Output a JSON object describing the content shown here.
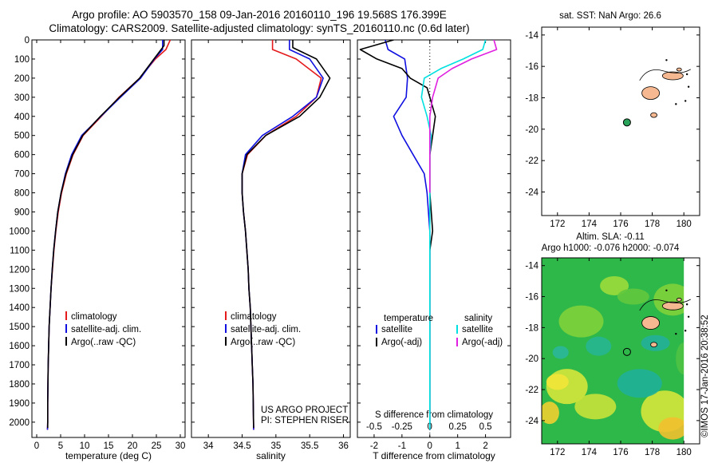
{
  "header": {
    "title_line1": "Argo profile: AO 5903570_158 09-Jan-2016 20160110_196 19.568S 176.399E",
    "title_line2": "Climatology: CARS2009. Satellite-adjusted climatology: synTS_20160110.nc (0.6d later)"
  },
  "credits": {
    "project": "US ARGO PROJECT",
    "pi": "PI: STEPHEN RISER",
    "imos": "©IMOS 17-Jan-2016 20:38:52"
  },
  "colors": {
    "climatology": "#e41a1c",
    "satellite": "#1010e0",
    "argo": "#000000",
    "sat_salinity": "#00e0e0",
    "argo_salinity": "#e020e0"
  },
  "map_sst": {
    "title": "sat. SST: NaN Argo: 26.6",
    "xticks": [
      "172",
      "174",
      "176",
      "178",
      "180"
    ],
    "yticks": [
      "-14",
      "-16",
      "-18",
      "-20",
      "-22",
      "-24"
    ],
    "xlim": [
      171,
      181
    ],
    "ylim": [
      -25.5,
      -13.5
    ],
    "float_position": [
      176.399,
      -19.568
    ]
  },
  "map_sla": {
    "title_line1": "Altim. SLA: -0.11",
    "title_line2": "Argo h1000: -0.076 h2000: -0.074",
    "xticks": [
      "172",
      "174",
      "176",
      "178",
      "180"
    ],
    "yticks": [
      "-14",
      "-16",
      "-18",
      "-20",
      "-22",
      "-24"
    ],
    "xlim": [
      171,
      181
    ],
    "ylim": [
      -25.5,
      -13.5
    ],
    "float_position": [
      176.399,
      -19.568
    ]
  },
  "chart_data": [
    {
      "type": "line",
      "panel": "temperature",
      "xlabel": "temperature (deg C)",
      "ylabel": "",
      "xlim": [
        -1,
        31
      ],
      "ylim": [
        2080,
        0
      ],
      "xticks": [
        0,
        5,
        10,
        15,
        20,
        25,
        30
      ],
      "yticks": [
        0,
        100,
        200,
        300,
        400,
        500,
        600,
        700,
        800,
        900,
        1000,
        1100,
        1200,
        1300,
        1400,
        1500,
        1600,
        1700,
        1800,
        1900,
        2000
      ],
      "legend": [
        "climatology",
        "satellite-adj. clim.",
        "Argo(..raw -QC)"
      ],
      "series": [
        {
          "name": "climatology",
          "color": "#e41a1c",
          "x": [
            27.9,
            27.0,
            24.8,
            21.5,
            17.2,
            13.5,
            9.7,
            7.6,
            6.2,
            5.2,
            4.5,
            4.0,
            3.6,
            3.3,
            3.0,
            2.8,
            2.6,
            2.5,
            2.4,
            2.35,
            2.3,
            2.3,
            2.25
          ],
          "y": [
            0,
            50,
            100,
            200,
            300,
            400,
            500,
            600,
            700,
            800,
            900,
            1000,
            1100,
            1200,
            1300,
            1400,
            1500,
            1600,
            1700,
            1800,
            1900,
            2000,
            2040
          ]
        },
        {
          "name": "satellite-adj. clim.",
          "color": "#1010e0",
          "x": [
            26.3,
            26.3,
            24.6,
            21.7,
            17.5,
            13.4,
            9.4,
            7.3,
            6.0,
            5.1,
            4.4,
            3.95,
            3.55,
            3.25,
            3.0,
            2.8,
            2.6,
            2.5,
            2.4,
            2.35,
            2.3,
            2.3,
            2.25
          ],
          "y": [
            0,
            50,
            100,
            200,
            300,
            400,
            500,
            600,
            700,
            800,
            900,
            1000,
            1100,
            1200,
            1300,
            1400,
            1500,
            1600,
            1700,
            1800,
            1900,
            2000,
            2040
          ]
        },
        {
          "name": "Argo(..raw -QC)",
          "color": "#000000",
          "x": [
            26.6,
            26.6,
            24.5,
            21.5,
            17.3,
            13.3,
            9.6,
            7.5,
            6.1,
            5.1,
            4.4,
            3.95,
            3.55,
            3.25,
            3.0,
            2.8,
            2.6,
            2.5,
            2.4,
            2.35,
            2.3,
            2.3
          ],
          "y": [
            0,
            30,
            100,
            200,
            300,
            400,
            500,
            600,
            700,
            800,
            900,
            1000,
            1100,
            1200,
            1300,
            1400,
            1500,
            1600,
            1700,
            1800,
            1900,
            2030
          ]
        }
      ]
    },
    {
      "type": "line",
      "panel": "salinity",
      "xlabel": "salinity",
      "ylabel": "",
      "xlim": [
        33.75,
        36.1
      ],
      "ylim": [
        2080,
        0
      ],
      "xticks": [
        34,
        34.5,
        35,
        35.5,
        36
      ],
      "legend": [
        "climatology",
        "satellite-adj. clim.",
        "Argo(..raw -QC)"
      ],
      "series": [
        {
          "name": "climatology",
          "color": "#e41a1c",
          "x": [
            34.95,
            34.95,
            35.3,
            35.67,
            35.6,
            35.3,
            34.85,
            34.58,
            34.5,
            34.5,
            34.52,
            34.55,
            34.57,
            34.59,
            34.6,
            34.62,
            34.63,
            34.64,
            34.65,
            34.66,
            34.67
          ],
          "y": [
            0,
            50,
            100,
            200,
            300,
            400,
            500,
            600,
            700,
            800,
            900,
            1000,
            1100,
            1200,
            1300,
            1400,
            1500,
            1600,
            1700,
            1800,
            2040
          ]
        },
        {
          "name": "satellite-adj. clim.",
          "color": "#1010e0",
          "x": [
            35.2,
            35.2,
            35.5,
            35.7,
            35.6,
            35.25,
            34.8,
            34.55,
            34.5,
            34.5,
            34.52,
            34.55,
            34.57,
            34.59,
            34.6,
            34.62,
            34.63,
            34.64,
            34.65,
            34.66,
            34.67
          ],
          "y": [
            0,
            50,
            100,
            200,
            300,
            400,
            500,
            600,
            700,
            800,
            900,
            1000,
            1100,
            1200,
            1300,
            1400,
            1500,
            1600,
            1700,
            1800,
            2040
          ]
        },
        {
          "name": "Argo(..raw -QC)",
          "color": "#000000",
          "x": [
            35.25,
            35.25,
            35.6,
            35.8,
            35.65,
            35.35,
            34.85,
            34.57,
            34.5,
            34.5,
            34.52,
            34.55,
            34.57,
            34.59,
            34.6,
            34.62,
            34.63,
            34.64,
            34.65,
            34.66,
            34.67
          ],
          "y": [
            0,
            40,
            100,
            200,
            300,
            400,
            500,
            600,
            700,
            800,
            900,
            1000,
            1100,
            1200,
            1300,
            1400,
            1500,
            1600,
            1700,
            1800,
            2030
          ]
        }
      ]
    },
    {
      "type": "line",
      "panel": "difference",
      "xlabel": "T difference from climatology",
      "xlabel_top": "S difference from climatology",
      "ylabel": "",
      "xlim": [
        -2.6,
        2.9
      ],
      "ylim": [
        2080,
        0
      ],
      "xticks": [
        -2,
        -1,
        0,
        1,
        2
      ],
      "s_xticks": [
        -0.5,
        -0.25,
        0,
        0.25,
        0.5
      ],
      "s_to_t_scale": 4,
      "legend": [
        "temperature",
        "satellite",
        "Argo(-adj)",
        "salinity",
        "satellite",
        "Argo(-adj)"
      ],
      "series": [
        {
          "name": "satellite",
          "group": "temperature",
          "color": "#1010e0",
          "x": [
            -1.6,
            -1.5,
            -0.9,
            -0.8,
            -0.85,
            -1.3,
            -1.0,
            -0.6,
            -0.2,
            -0.1,
            0.0,
            0.0,
            0.0,
            0.0,
            0.0,
            0.0,
            0.0
          ],
          "y": [
            0,
            50,
            100,
            200,
            300,
            400,
            500,
            600,
            700,
            800,
            1000,
            1200,
            1400,
            1600,
            1800,
            1900,
            2040
          ]
        },
        {
          "name": "Argo(-adj)",
          "group": "temperature",
          "color": "#000000",
          "x": [
            -1.3,
            -2.5,
            -1.9,
            -1.0,
            -0.7,
            -0.1,
            0.0,
            0.2,
            0.1,
            0.0,
            0.0,
            0.0,
            0.1,
            0.0,
            0.0,
            0.0,
            0.0,
            0.0,
            0.0
          ],
          "y": [
            0,
            50,
            100,
            150,
            200,
            250,
            300,
            400,
            500,
            600,
            700,
            800,
            1000,
            1100,
            1300,
            1500,
            1700,
            1900,
            2030
          ]
        },
        {
          "name": "satellite",
          "group": "salinity",
          "color": "#00e0e0",
          "x": [
            2.0,
            1.9,
            1.2,
            0.4,
            -0.2,
            -0.3,
            -0.1,
            0.05,
            0.0,
            0.0,
            0.0,
            0.0,
            0.0,
            0.0,
            0.0
          ],
          "y": [
            0,
            50,
            100,
            150,
            200,
            300,
            400,
            500,
            600,
            700,
            900,
            1200,
            1500,
            1800,
            2040
          ]
        },
        {
          "name": "Argo(-adj)",
          "group": "salinity",
          "color": "#e020e0",
          "x": [
            2.3,
            2.4,
            1.5,
            0.8,
            0.3,
            0.1,
            0.0,
            0.0,
            0.0,
            0.0,
            0.0
          ],
          "y": [
            0,
            50,
            100,
            150,
            200,
            300,
            400,
            500,
            600,
            700,
            800
          ]
        }
      ]
    }
  ]
}
